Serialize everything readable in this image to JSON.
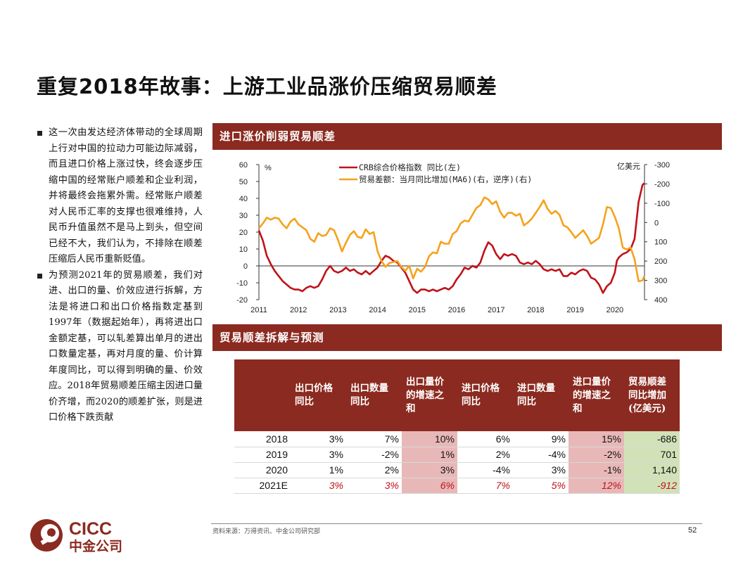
{
  "title": "重复2018年故事：上游工业品涨价压缩贸易顺差",
  "bullets": [
    "这一次由发达经济体带动的全球周期上行对中国的拉动力可能边际减弱，而且进口价格上涨过快，终会逐步压缩中国的经常账户顺差和企业利润，并将最终会拖累外需。经常账户顺差对人民币汇率的支撑也很难维持，人民币升值虽然不是马上到头，但空间已经不大，我们认为，不排除在顺差压缩后人民币重新贬值。",
    "为预测2021年的贸易顺差，我们对进、出口的量、价效应进行拆解，方法是将进口和出口价格指数定基到1997年（数据起始年），再将进出口金额定基，可以轧差算出单月的进出口数量定基，再对月度的量、价计算年度同比，可以得到明确的量、价效应。2018年贸易顺差压缩主因进口量价齐增，而2020的顺差扩张，则是进口价格下跌贡献"
  ],
  "panel1_title": "进口涨价削弱贸易顺差",
  "panel2_title": "贸易顺差拆解与预测",
  "colors": {
    "accent": "#8b2a20",
    "series_red": "#c0121a",
    "series_orange": "#f5a21b"
  },
  "chart_data": {
    "type": "line",
    "x_labels": [
      "2011",
      "2012",
      "2013",
      "2014",
      "2015",
      "2016",
      "2017",
      "2018",
      "2019",
      "2020"
    ],
    "x_range": [
      2011,
      2020.75
    ],
    "left_axis": {
      "unit": "%",
      "ylim": [
        -20,
        60
      ],
      "ticks": [
        60,
        50,
        40,
        30,
        20,
        10,
        0,
        -10,
        -20
      ]
    },
    "right_axis": {
      "unit": "亿美元",
      "ylim": [
        -300,
        400
      ],
      "reversed": true,
      "ticks": [
        -300,
        -200,
        -100,
        0,
        100,
        200,
        300,
        400
      ]
    },
    "series": [
      {
        "name": "CRB综合价格指数 同比(左)",
        "axis": "left",
        "color": "#c0121a",
        "points": [
          [
            2011.0,
            21
          ],
          [
            2011.1,
            15
          ],
          [
            2011.2,
            6
          ],
          [
            2011.3,
            1
          ],
          [
            2011.4,
            -3
          ],
          [
            2011.5,
            -6
          ],
          [
            2011.6,
            -9
          ],
          [
            2011.7,
            -11
          ],
          [
            2011.8,
            -13
          ],
          [
            2011.9,
            -14
          ],
          [
            2012.0,
            -14
          ],
          [
            2012.1,
            -15
          ],
          [
            2012.2,
            -13
          ],
          [
            2012.3,
            -12
          ],
          [
            2012.4,
            -13
          ],
          [
            2012.5,
            -12
          ],
          [
            2012.6,
            -8
          ],
          [
            2012.7,
            -3
          ],
          [
            2012.8,
            0
          ],
          [
            2012.9,
            -3
          ],
          [
            2013.0,
            -4
          ],
          [
            2013.1,
            -3
          ],
          [
            2013.2,
            -1
          ],
          [
            2013.3,
            -3
          ],
          [
            2013.4,
            -2
          ],
          [
            2013.5,
            -4
          ],
          [
            2013.6,
            -5
          ],
          [
            2013.7,
            -3
          ],
          [
            2013.8,
            -5
          ],
          [
            2013.9,
            -3
          ],
          [
            2014.0,
            -1
          ],
          [
            2014.1,
            3
          ],
          [
            2014.2,
            6
          ],
          [
            2014.3,
            5
          ],
          [
            2014.4,
            3
          ],
          [
            2014.5,
            2
          ],
          [
            2014.6,
            -1
          ],
          [
            2014.7,
            -4
          ],
          [
            2014.8,
            -9
          ],
          [
            2014.9,
            -14
          ],
          [
            2015.0,
            -16
          ],
          [
            2015.1,
            -14
          ],
          [
            2015.2,
            -14
          ],
          [
            2015.3,
            -15
          ],
          [
            2015.4,
            -14
          ],
          [
            2015.5,
            -15
          ],
          [
            2015.6,
            -14
          ],
          [
            2015.7,
            -13
          ],
          [
            2015.8,
            -14
          ],
          [
            2015.9,
            -12
          ],
          [
            2016.0,
            -8
          ],
          [
            2016.1,
            -5
          ],
          [
            2016.2,
            -1
          ],
          [
            2016.3,
            -2
          ],
          [
            2016.4,
            0
          ],
          [
            2016.5,
            -1
          ],
          [
            2016.6,
            2
          ],
          [
            2016.7,
            9
          ],
          [
            2016.8,
            14
          ],
          [
            2016.9,
            12
          ],
          [
            2017.0,
            7
          ],
          [
            2017.1,
            4
          ],
          [
            2017.2,
            7
          ],
          [
            2017.3,
            6
          ],
          [
            2017.4,
            7
          ],
          [
            2017.5,
            6
          ],
          [
            2017.6,
            2
          ],
          [
            2017.7,
            1
          ],
          [
            2017.8,
            2
          ],
          [
            2017.9,
            1
          ],
          [
            2018.0,
            3
          ],
          [
            2018.1,
            1
          ],
          [
            2018.2,
            -2
          ],
          [
            2018.3,
            -3
          ],
          [
            2018.4,
            -2
          ],
          [
            2018.5,
            -3
          ],
          [
            2018.6,
            -2
          ],
          [
            2018.7,
            -6
          ],
          [
            2018.8,
            -6
          ],
          [
            2018.9,
            -4
          ],
          [
            2019.0,
            -5
          ],
          [
            2019.1,
            -3
          ],
          [
            2019.2,
            -2
          ],
          [
            2019.3,
            -3
          ],
          [
            2019.4,
            -7
          ],
          [
            2019.5,
            -8
          ],
          [
            2019.6,
            -11
          ],
          [
            2019.7,
            -16
          ],
          [
            2019.8,
            -12
          ],
          [
            2019.9,
            -10
          ],
          [
            2020.0,
            -4
          ],
          [
            2020.05,
            3
          ],
          [
            2020.1,
            5
          ],
          [
            2020.2,
            7
          ],
          [
            2020.3,
            8
          ],
          [
            2020.4,
            10
          ],
          [
            2020.5,
            16
          ],
          [
            2020.6,
            38
          ],
          [
            2020.7,
            48
          ],
          [
            2020.75,
            49
          ]
        ]
      },
      {
        "name": "贸易差额：当月同比增加(MA6)(右，逆序)(右)",
        "axis": "right",
        "color": "#f5a21b",
        "points": [
          [
            2011.0,
            30
          ],
          [
            2011.1,
            5
          ],
          [
            2011.2,
            -25
          ],
          [
            2011.3,
            -15
          ],
          [
            2011.4,
            -25
          ],
          [
            2011.5,
            -20
          ],
          [
            2011.6,
            10
          ],
          [
            2011.7,
            30
          ],
          [
            2011.8,
            -5
          ],
          [
            2011.9,
            -20
          ],
          [
            2012.0,
            10
          ],
          [
            2012.1,
            25
          ],
          [
            2012.2,
            40
          ],
          [
            2012.3,
            85
          ],
          [
            2012.4,
            100
          ],
          [
            2012.5,
            55
          ],
          [
            2012.6,
            70
          ],
          [
            2012.7,
            65
          ],
          [
            2012.8,
            30
          ],
          [
            2012.9,
            40
          ],
          [
            2013.0,
            90
          ],
          [
            2013.1,
            150
          ],
          [
            2013.2,
            105
          ],
          [
            2013.3,
            65
          ],
          [
            2013.4,
            45
          ],
          [
            2013.5,
            75
          ],
          [
            2013.6,
            80
          ],
          [
            2013.7,
            35
          ],
          [
            2013.8,
            60
          ],
          [
            2013.9,
            50
          ],
          [
            2014.0,
            150
          ],
          [
            2014.1,
            200
          ],
          [
            2014.2,
            230
          ],
          [
            2014.3,
            210
          ],
          [
            2014.4,
            205
          ],
          [
            2014.5,
            200
          ],
          [
            2014.6,
            230
          ],
          [
            2014.7,
            250
          ],
          [
            2014.8,
            225
          ],
          [
            2014.9,
            290
          ],
          [
            2015.0,
            240
          ],
          [
            2015.1,
            255
          ],
          [
            2015.2,
            230
          ],
          [
            2015.3,
            175
          ],
          [
            2015.4,
            155
          ],
          [
            2015.5,
            160
          ],
          [
            2015.6,
            100
          ],
          [
            2015.7,
            110
          ],
          [
            2015.8,
            110
          ],
          [
            2015.9,
            60
          ],
          [
            2016.0,
            45
          ],
          [
            2016.1,
            5
          ],
          [
            2016.2,
            -10
          ],
          [
            2016.3,
            -5
          ],
          [
            2016.4,
            -40
          ],
          [
            2016.5,
            -75
          ],
          [
            2016.6,
            -90
          ],
          [
            2016.7,
            -130
          ],
          [
            2016.8,
            -120
          ],
          [
            2016.9,
            -95
          ],
          [
            2017.0,
            -110
          ],
          [
            2017.1,
            -55
          ],
          [
            2017.2,
            -25
          ],
          [
            2017.3,
            -50
          ],
          [
            2017.4,
            -50
          ],
          [
            2017.5,
            -35
          ],
          [
            2017.6,
            -45
          ],
          [
            2017.7,
            15
          ],
          [
            2017.8,
            0
          ],
          [
            2017.9,
            -20
          ],
          [
            2018.0,
            -50
          ],
          [
            2018.1,
            -80
          ],
          [
            2018.2,
            -115
          ],
          [
            2018.3,
            -70
          ],
          [
            2018.4,
            -45
          ],
          [
            2018.5,
            -60
          ],
          [
            2018.6,
            -40
          ],
          [
            2018.7,
            15
          ],
          [
            2018.8,
            25
          ],
          [
            2018.9,
            50
          ],
          [
            2019.0,
            80
          ],
          [
            2019.1,
            60
          ],
          [
            2019.2,
            40
          ],
          [
            2019.3,
            70
          ],
          [
            2019.4,
            110
          ],
          [
            2019.5,
            95
          ],
          [
            2019.6,
            80
          ],
          [
            2019.7,
            10
          ],
          [
            2019.8,
            -80
          ],
          [
            2019.9,
            -75
          ],
          [
            2020.0,
            -30
          ],
          [
            2020.1,
            30
          ],
          [
            2020.2,
            130
          ],
          [
            2020.3,
            140
          ],
          [
            2020.4,
            130
          ],
          [
            2020.5,
            190
          ],
          [
            2020.55,
            250
          ],
          [
            2020.6,
            305
          ],
          [
            2020.7,
            300
          ],
          [
            2020.75,
            275
          ]
        ]
      }
    ]
  },
  "table": {
    "headers": [
      "",
      "出口价格同比",
      "出口数量同比",
      "出口量价的增速之和",
      "进口价格同比",
      "进口数量同比",
      "进口量价的增速之和",
      "贸易顺差同比增加(亿美元)"
    ],
    "rows": [
      [
        "2018",
        "3%",
        "7%",
        "10%",
        "6%",
        "9%",
        "15%",
        "-686"
      ],
      [
        "2019",
        "3%",
        "-2%",
        "1%",
        "2%",
        "-4%",
        "-2%",
        "701"
      ],
      [
        "2020",
        "1%",
        "2%",
        "3%",
        "-4%",
        "3%",
        "-1%",
        "1,140"
      ],
      [
        "2021E",
        "3%",
        "3%",
        "6%",
        "7%",
        "5%",
        "12%",
        "-912"
      ]
    ]
  },
  "source": "资料来源：万得资讯、中金公司研究部",
  "page_number": "52",
  "logo": {
    "latin": "CICC",
    "chinese": "中金公司"
  }
}
